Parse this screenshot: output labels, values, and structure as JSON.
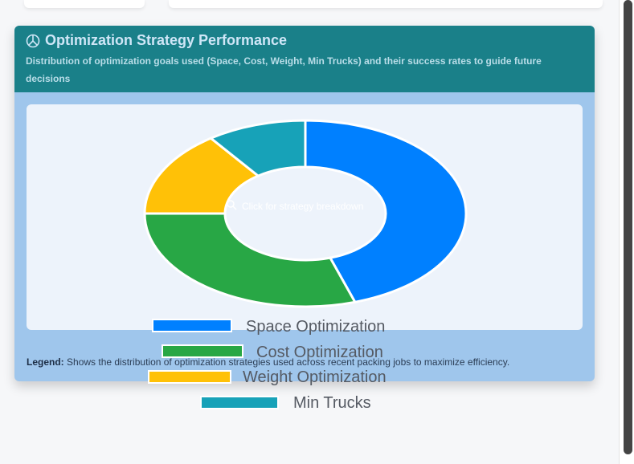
{
  "card": {
    "title": "Optimization Strategy Performance",
    "title_icon": "pie-chart-icon",
    "subtitle": "Distribution of optimization goals used (Space, Cost, Weight, Min Trucks) and their success rates to guide future decisions",
    "center_hint": "Click for strategy breakdown",
    "center_icon": "magnifier-icon",
    "legend_note_label": "Legend:",
    "legend_note_text": "Shows the distribution of optimization strategies used across recent packing jobs to maximize efficiency."
  },
  "chart_data": {
    "type": "pie",
    "categories": [
      "Space Optimization",
      "Cost Optimization",
      "Weight Optimization",
      "Min Trucks"
    ],
    "values": [
      45,
      30,
      15,
      10
    ],
    "colors": [
      "#0080ff",
      "#28a745",
      "#ffc107",
      "#17a2b8"
    ],
    "title": "",
    "legend_position": "bottom"
  }
}
